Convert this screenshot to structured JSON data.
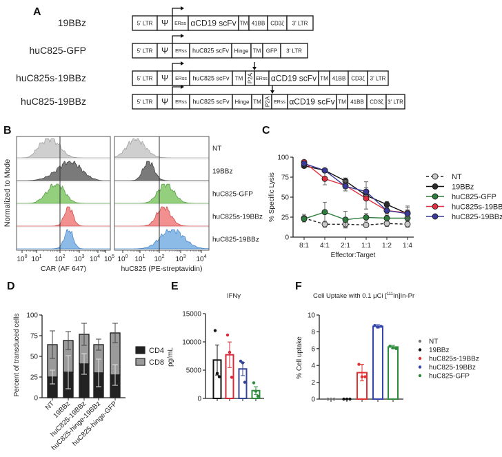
{
  "panels": {
    "a": "A",
    "b": "B",
    "c": "C",
    "d": "D",
    "e": "E",
    "f": "F"
  },
  "constructs": [
    {
      "label": "19BBz",
      "segments": [
        "5' LTR",
        "Ψ",
        "ERss",
        "αCD19 scFv",
        "TM",
        "41BB",
        "CD3ζ",
        "3' LTR"
      ]
    },
    {
      "label": "huC825-GFP",
      "segments": [
        "5' LTR",
        "Ψ",
        "ERss",
        "huC825 scFv",
        "Hinge",
        "TM",
        "GFP",
        "3' LTR"
      ]
    },
    {
      "label": "huC825s-19BBz",
      "segments": [
        "5' LTR",
        "Ψ",
        "ERss",
        "huC825 scFv",
        "TM",
        "P2A",
        "ERss",
        "αCD19 scFv",
        "TM",
        "41BB",
        "CD3ζ",
        "3' LTR"
      ]
    },
    {
      "label": "huC825-19BBz",
      "segments": [
        "5' LTR",
        "Ψ",
        "ERss",
        "huC825 scFv",
        "Hinge",
        "TM",
        "P2A",
        "ERss",
        "αCD19 scFv",
        "TM",
        "41BB",
        "CD3ζ",
        "3' LTR"
      ]
    }
  ],
  "chart_data": [
    {
      "id": "B",
      "type": "histogram",
      "ylabel": "Normalized to Mode",
      "samples": [
        "NT",
        "19BBz",
        "huC825-GFP",
        "huC825s-19BBz",
        "huC825-19BBz"
      ],
      "colors": {
        "fill": [
          "#cfcfcf",
          "#7a7a7a",
          "#93cf7c",
          "#f29090",
          "#8cbbe8"
        ],
        "stroke": [
          "#a0a0a0",
          "#444444",
          "#5b9c4b",
          "#d05050",
          "#4a88c8"
        ]
      },
      "panels": [
        {
          "xlabel": "CAR (AF 647)",
          "ticks": [
            "10^0",
            "10^1",
            "10^2",
            "10^3",
            "10^4",
            "10^5"
          ],
          "gate_log10": 2,
          "mode_log10": [
            1.55,
            2.5,
            1.85,
            2.45,
            2.45
          ],
          "spread_log10": [
            0.45,
            0.6,
            0.4,
            0.22,
            0.22
          ]
        },
        {
          "xlabel": "huC825 (PE-streptavidin)",
          "ticks": [
            "10^0",
            "10^1",
            "10^2",
            "10^3",
            "10^4"
          ],
          "gate_log10": 2,
          "mode_log10": [
            0.75,
            1.45,
            2.3,
            2.2,
            2.6
          ],
          "spread_log10": [
            0.5,
            0.28,
            0.38,
            0.33,
            0.55
          ]
        }
      ]
    },
    {
      "id": "C",
      "type": "line",
      "xlabel": "Effector:Target",
      "ylabel": "% Specific Lysis",
      "categories": [
        "8:1",
        "4:1",
        "2:1",
        "1:1",
        "1:2",
        "1:4"
      ],
      "ylim": [
        0,
        100
      ],
      "yticks": [
        0,
        25,
        50,
        75,
        100
      ],
      "series": [
        {
          "name": "NT",
          "color": "#222222",
          "marker": "#c8c8c8",
          "dashed": true,
          "values": [
            25,
            17,
            17,
            16,
            18,
            17
          ],
          "err": [
            5,
            4,
            4,
            3,
            4,
            4
          ]
        },
        {
          "name": "19BBz",
          "color": "#111111",
          "marker": "#2a2a2a",
          "values": [
            94,
            88,
            74,
            55,
            43,
            31
          ],
          "err": [
            2,
            2,
            4,
            18,
            4,
            8
          ]
        },
        {
          "name": "huC825-GFP",
          "color": "#2e7d3e",
          "marker": "#2e7d3e",
          "values": [
            24,
            33,
            23,
            26,
            25,
            25
          ],
          "err": [
            4,
            13,
            11,
            5,
            4,
            4
          ]
        },
        {
          "name": "huC825s-19BBz",
          "color": "#e03040",
          "marker": "#e03040",
          "values": [
            99,
            77,
            68,
            51,
            35,
            32
          ],
          "err": [
            1,
            8,
            7,
            14,
            4,
            9
          ]
        },
        {
          "name": "huC825-19BBz",
          "color": "#3a3a9a",
          "marker": "#3a3a9a",
          "values": [
            97,
            88,
            67,
            60,
            35,
            31
          ],
          "err": [
            1,
            2,
            6,
            5,
            4,
            5
          ]
        }
      ]
    },
    {
      "id": "D",
      "type": "bar",
      "stacked": true,
      "ylabel": "Percent of transduced cells",
      "categories": [
        "NT",
        "19BBz",
        "huC825-19BBz",
        "huC825-hinge-19BBz",
        "huC825-hinge-GFP"
      ],
      "ylim": [
        0,
        120
      ],
      "yticks": [
        0,
        25,
        50,
        75,
        100
      ],
      "series": [
        {
          "name": "CD4",
          "color": "#222222",
          "values": [
            30,
            37,
            49,
            36,
            33
          ],
          "err": [
            10,
            24,
            15,
            20,
            15
          ]
        },
        {
          "name": "CD8",
          "color": "#9a9a9a",
          "values": [
            47,
            46,
            43,
            41,
            61
          ],
          "err": [
            20,
            13,
            16,
            8,
            14
          ]
        }
      ]
    },
    {
      "id": "E",
      "type": "bar",
      "title": "IFNγ",
      "ylabel": "pg/mL",
      "ylim": [
        0,
        15000
      ],
      "yticks": [
        0,
        5000,
        10000,
        15000
      ],
      "colors": [
        "#111111",
        "#d8283a",
        "#34449a",
        "#2e8b3e"
      ],
      "values": [
        6900,
        7850,
        5300,
        1400
      ],
      "err": [
        2700,
        2300,
        1200,
        700
      ],
      "points": [
        [
          12200,
          4500,
          3900
        ],
        [
          11400,
          8300,
          3800
        ],
        [
          6700,
          6400,
          2900
        ],
        [
          2800,
          1300,
          400
        ]
      ]
    },
    {
      "id": "F",
      "type": "bar",
      "title": "Cell Uptake with 0.1 μCi [111In]In-Pr",
      "ylabel": "% Cell uptake",
      "ylim": [
        0,
        10
      ],
      "yticks": [
        0,
        2,
        4,
        6,
        8,
        10
      ],
      "categories": [
        "NT",
        "19BBz",
        "huC825s-19BBz",
        "huC825-19BBz",
        "huC825-GFP"
      ],
      "colors": [
        "#7a7a7a",
        "#111111",
        "#e03030",
        "#3344aa",
        "#2e8b3e"
      ],
      "values": [
        0.02,
        0.03,
        3.2,
        8.8,
        6.3
      ],
      "err": [
        0,
        0,
        1.0,
        0.2,
        0.2
      ],
      "points": [
        [
          0,
          0,
          0
        ],
        [
          0,
          0,
          0
        ],
        [
          4.2,
          2.7,
          2.7
        ],
        [
          8.9,
          8.7,
          8.8
        ],
        [
          6.4,
          6.2,
          6.1
        ]
      ]
    }
  ]
}
